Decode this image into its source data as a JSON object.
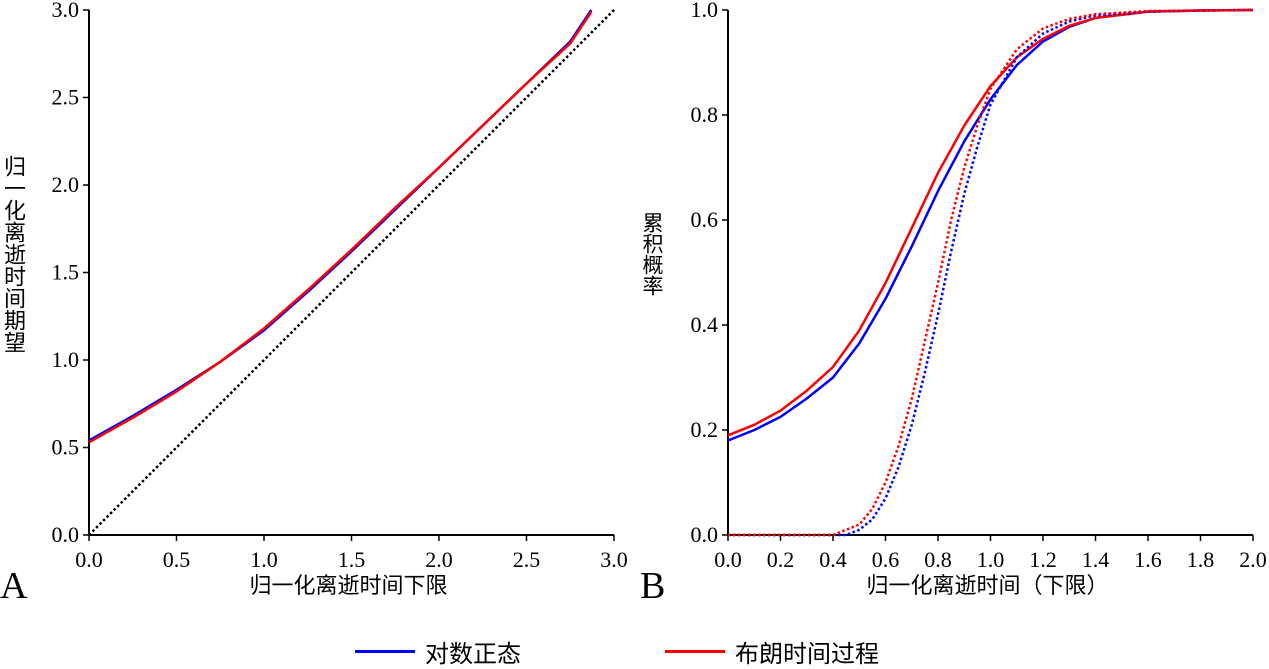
{
  "colors": {
    "lognormal": "#0000ff",
    "brownian": "#ff0000",
    "axis": "#000000"
  },
  "legend": {
    "lognormal": "对数正态",
    "brownian": "布朗时间过程"
  },
  "chart_data": [
    {
      "panel": "A",
      "type": "line",
      "xlabel": "归一化离逝时间下限",
      "ylabel": "归一化离逝时间期望",
      "xlim": [
        0,
        3
      ],
      "ylim": [
        0,
        3
      ],
      "xticks": [
        "0.0",
        "0.5",
        "1.0",
        "1.5",
        "2.0",
        "2.5",
        "3.0"
      ],
      "yticks": [
        "0.0",
        "0.5",
        "1.0",
        "1.5",
        "2.0",
        "2.5",
        "3.0"
      ],
      "series": [
        {
          "name": "对数正态",
          "color": "#0000ff",
          "style": "solid",
          "x": [
            0,
            0.25,
            0.5,
            0.75,
            1.0,
            1.25,
            1.5,
            1.75,
            2.0,
            2.25,
            2.5,
            2.75,
            2.87
          ],
          "y": [
            0.54,
            0.68,
            0.83,
            0.99,
            1.17,
            1.39,
            1.62,
            1.86,
            2.1,
            2.34,
            2.58,
            2.82,
            3.0
          ]
        },
        {
          "name": "布朗时间过程",
          "color": "#ff0000",
          "style": "solid",
          "x": [
            0,
            0.25,
            0.5,
            0.75,
            1.0,
            1.25,
            1.5,
            1.75,
            2.0,
            2.25,
            2.5,
            2.75,
            2.87
          ],
          "y": [
            0.53,
            0.67,
            0.82,
            0.99,
            1.18,
            1.4,
            1.63,
            1.87,
            2.1,
            2.34,
            2.58,
            2.81,
            2.99
          ]
        },
        {
          "name": "y=x",
          "color": "#000000",
          "style": "dotted",
          "x": [
            0,
            3
          ],
          "y": [
            0,
            3
          ]
        }
      ]
    },
    {
      "panel": "B",
      "type": "line",
      "xlabel": "归一化离逝时间（下限）",
      "ylabel": "累积概率",
      "xlim": [
        0,
        2
      ],
      "ylim": [
        0,
        1
      ],
      "xticks": [
        "0.0",
        "0.2",
        "0.4",
        "0.6",
        "0.8",
        "1.0",
        "1.2",
        "1.4",
        "1.6",
        "1.8",
        "2.0"
      ],
      "yticks": [
        "0.0",
        "0.2",
        "0.4",
        "0.6",
        "0.8",
        "1.0"
      ],
      "series": [
        {
          "name": "对数正态",
          "color": "#0000ff",
          "style": "solid",
          "x": [
            0,
            0.1,
            0.2,
            0.3,
            0.4,
            0.5,
            0.6,
            0.7,
            0.8,
            0.9,
            1.0,
            1.1,
            1.2,
            1.3,
            1.4,
            1.6,
            1.8,
            2.0
          ],
          "y": [
            0.18,
            0.2,
            0.225,
            0.26,
            0.3,
            0.365,
            0.45,
            0.55,
            0.655,
            0.75,
            0.83,
            0.895,
            0.94,
            0.968,
            0.985,
            0.997,
            0.999,
            1.0
          ]
        },
        {
          "name": "布朗时间过程",
          "color": "#ff0000",
          "style": "solid",
          "x": [
            0,
            0.1,
            0.2,
            0.3,
            0.4,
            0.5,
            0.6,
            0.7,
            0.8,
            0.9,
            1.0,
            1.1,
            1.2,
            1.3,
            1.4,
            1.6,
            1.8,
            2.0
          ],
          "y": [
            0.19,
            0.21,
            0.237,
            0.275,
            0.32,
            0.39,
            0.48,
            0.585,
            0.69,
            0.78,
            0.855,
            0.91,
            0.945,
            0.97,
            0.985,
            0.997,
            0.999,
            1.0
          ]
        },
        {
          "name": "对数正态 (dotted)",
          "color": "#0000ff",
          "style": "dotted",
          "x": [
            0,
            0.45,
            0.5,
            0.55,
            0.6,
            0.65,
            0.7,
            0.75,
            0.8,
            0.85,
            0.9,
            0.95,
            1.0,
            1.1,
            1.2,
            1.3,
            1.4,
            1.6,
            1.8,
            2.0
          ],
          "y": [
            0,
            0,
            0.01,
            0.03,
            0.07,
            0.13,
            0.21,
            0.31,
            0.42,
            0.54,
            0.65,
            0.74,
            0.82,
            0.91,
            0.955,
            0.978,
            0.99,
            0.997,
            0.999,
            1.0
          ]
        },
        {
          "name": "布朗时间过程 (dotted)",
          "color": "#ff0000",
          "style": "dotted",
          "x": [
            0,
            0.4,
            0.45,
            0.5,
            0.55,
            0.6,
            0.65,
            0.7,
            0.75,
            0.8,
            0.85,
            0.9,
            0.95,
            1.0,
            1.1,
            1.2,
            1.3,
            1.4,
            1.6,
            1.8,
            2.0
          ],
          "y": [
            0,
            0,
            0.01,
            0.02,
            0.05,
            0.1,
            0.17,
            0.26,
            0.37,
            0.48,
            0.6,
            0.7,
            0.78,
            0.85,
            0.925,
            0.965,
            0.983,
            0.992,
            0.998,
            0.999,
            1.0
          ]
        }
      ]
    }
  ],
  "panel_labels": [
    "A",
    "B"
  ]
}
